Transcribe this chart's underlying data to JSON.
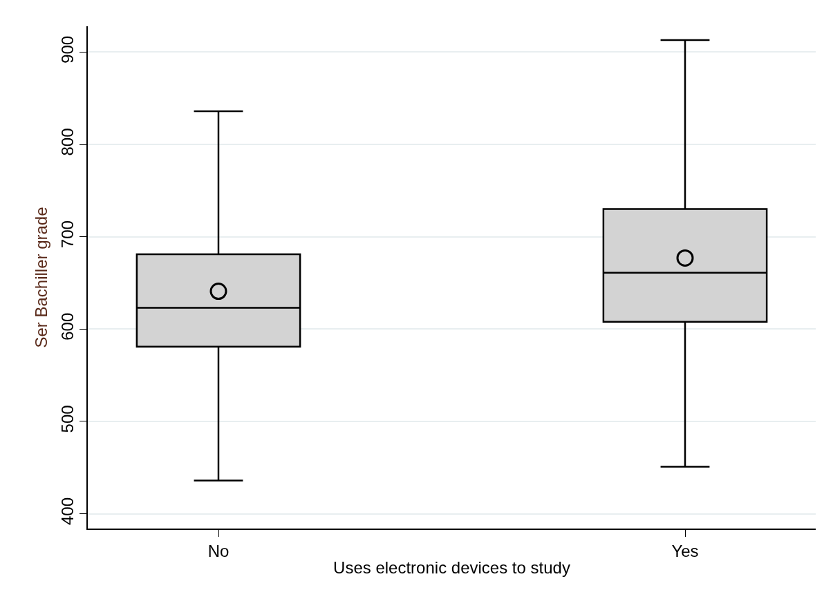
{
  "chart_data": {
    "type": "box",
    "xlabel": "Uses electronic devices to study",
    "ylabel": "Ser Bachiller grade",
    "categories": [
      "No",
      "Yes"
    ],
    "series": [
      {
        "color": "#d3d3d3",
        "boxes": [
          {
            "low": 436,
            "q1": 581,
            "median": 623,
            "q3": 681,
            "high": 836,
            "mean": 641
          },
          {
            "low": 451,
            "q1": 608,
            "median": 661,
            "q3": 730,
            "high": 913,
            "mean": 677
          }
        ]
      }
    ],
    "ylim": [
      384,
      928
    ],
    "yticks": [
      400,
      500,
      600,
      700,
      800,
      900
    ],
    "grid": "y",
    "marker": "circle"
  }
}
